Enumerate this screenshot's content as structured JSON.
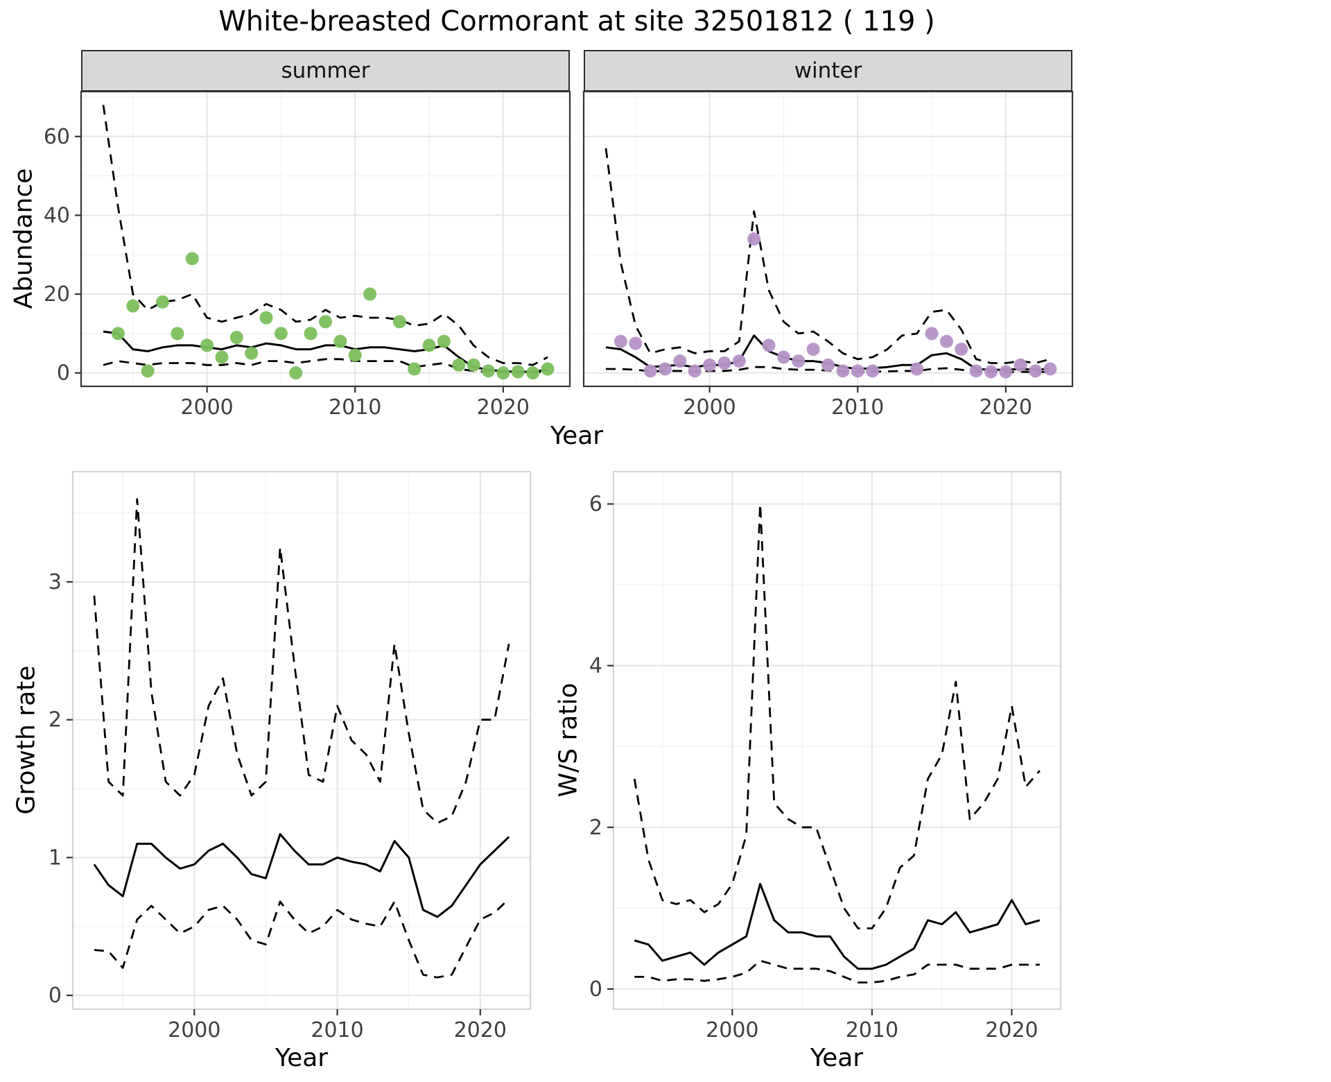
{
  "title": "White-breasted Cormorant at site 32501812 ( 119 )",
  "theme": {
    "line": "#000000",
    "point_summer": "#7bbf5c",
    "point_winter": "#b592c6",
    "grid_major": "#e6e6e6",
    "grid_minor": "#f2f2f2",
    "panel_border_top": "#333333",
    "panel_border_bottom": "#d4d4d4",
    "strip_bg": "#d8d8d8",
    "tick": "#333333",
    "tick_label": "#404040",
    "panel_bg": "#ffffff"
  },
  "chart_data": [
    {
      "id": "abundance_summer",
      "type": "line",
      "title": "summer",
      "xlabel": "Year",
      "ylabel": "Abundance",
      "legend": "none",
      "grid": true,
      "border": "panel_border_top",
      "xlim": [
        1991.5,
        2024.5
      ],
      "ylim": [
        -3.4,
        71.4
      ],
      "xticks": [
        2000,
        2010,
        2020
      ],
      "xticks_minor": [
        1995,
        2005,
        2015
      ],
      "yticks": [
        0,
        20,
        40,
        60
      ],
      "yticks_minor": [
        10,
        30,
        50,
        70
      ],
      "x": [
        1993,
        1994,
        1995,
        1996,
        1997,
        1998,
        1999,
        2000,
        2001,
        2002,
        2003,
        2004,
        2005,
        2006,
        2007,
        2008,
        2009,
        2010,
        2011,
        2012,
        2013,
        2014,
        2015,
        2016,
        2017,
        2018,
        2019,
        2020,
        2021,
        2022,
        2023
      ],
      "series": [
        {
          "name": "upper_ci",
          "style": "dashed",
          "values": [
            68,
            42,
            20,
            16,
            18,
            18.5,
            20,
            14,
            13,
            14,
            15,
            17.5,
            16,
            13,
            13.5,
            16,
            14,
            14.5,
            14,
            14,
            13.5,
            12,
            12.5,
            15,
            12,
            7,
            4,
            2.5,
            2.5,
            2,
            4
          ]
        },
        {
          "name": "lower_ci",
          "style": "dashed",
          "values": [
            2,
            3,
            2.5,
            2,
            2.5,
            2.5,
            2.5,
            2,
            2,
            2.5,
            2,
            3,
            3,
            2.5,
            3,
            3.5,
            3.5,
            3,
            3,
            3,
            3,
            1.5,
            2,
            2.5,
            1,
            0.5,
            0.2,
            0.1,
            0.1,
            0.1,
            0.3
          ]
        },
        {
          "name": "mean",
          "style": "solid",
          "values": [
            10.5,
            10,
            6,
            5.5,
            6.5,
            7,
            7,
            6.5,
            6,
            7,
            6.5,
            7.5,
            7,
            6,
            6,
            7,
            7,
            6,
            6.5,
            6.5,
            6,
            5.5,
            6,
            7,
            4,
            1.5,
            0.8,
            0.4,
            0.3,
            0.3,
            0.8
          ]
        },
        {
          "name": "observed",
          "style": "points",
          "color": "#7bbf5c",
          "values": [
            null,
            10,
            17,
            0.5,
            18,
            10,
            29,
            7,
            4,
            9,
            5,
            14,
            10,
            0,
            10,
            13,
            8,
            4.5,
            20,
            null,
            13,
            1,
            7,
            8,
            2,
            2,
            0.5,
            0,
            0.3,
            0,
            1
          ]
        }
      ]
    },
    {
      "id": "abundance_winter",
      "type": "line",
      "title": "winter",
      "xlabel": "Year",
      "ylabel": "Abundance",
      "legend": "none",
      "grid": true,
      "border": "panel_border_top",
      "xlim": [
        1991.5,
        2024.5
      ],
      "ylim": [
        -3.4,
        71.4
      ],
      "xticks": [
        2000,
        2010,
        2020
      ],
      "xticks_minor": [
        1995,
        2005,
        2015
      ],
      "yticks": [
        0,
        20,
        40,
        60
      ],
      "yticks_minor": [
        10,
        30,
        50,
        70
      ],
      "x": [
        1993,
        1994,
        1995,
        1996,
        1997,
        1998,
        1999,
        2000,
        2001,
        2002,
        2003,
        2004,
        2005,
        2006,
        2007,
        2008,
        2009,
        2010,
        2011,
        2012,
        2013,
        2014,
        2015,
        2016,
        2017,
        2018,
        2019,
        2020,
        2021,
        2022,
        2023
      ],
      "series": [
        {
          "name": "upper_ci",
          "style": "dashed",
          "values": [
            57,
            28,
            12,
            5,
            6,
            6.5,
            5,
            5.5,
            5.5,
            8,
            41,
            21,
            13,
            10,
            10.5,
            8,
            5,
            3.5,
            4,
            6,
            9.5,
            10,
            15.5,
            16,
            11,
            3.5,
            2.5,
            2.5,
            3,
            2.5,
            3.5
          ]
        },
        {
          "name": "lower_ci",
          "style": "dashed",
          "values": [
            1,
            1,
            0.8,
            0.4,
            0.5,
            0.5,
            0.4,
            0.5,
            0.5,
            0.8,
            1.5,
            1.5,
            1,
            0.8,
            0.8,
            0.6,
            0.4,
            0.3,
            0.3,
            0.4,
            0.5,
            0.5,
            1,
            1.2,
            0.8,
            0.3,
            0.2,
            0.2,
            0.3,
            0.2,
            0.3
          ]
        },
        {
          "name": "mean",
          "style": "solid",
          "values": [
            6.5,
            6,
            4,
            1.5,
            1.8,
            2,
            1.5,
            2,
            2,
            3,
            9.5,
            5.5,
            4,
            3,
            3,
            2.5,
            1.5,
            1,
            1.2,
            1.5,
            2,
            2,
            4.5,
            5,
            3.5,
            1,
            0.8,
            0.8,
            1,
            0.8,
            1
          ]
        },
        {
          "name": "observed",
          "style": "points",
          "color": "#b592c6",
          "values": [
            null,
            8,
            7.5,
            0.5,
            1,
            3,
            0.5,
            2,
            2.5,
            3,
            34,
            7,
            4,
            3,
            6,
            2,
            0.5,
            0.5,
            0.5,
            null,
            null,
            1,
            10,
            8,
            6,
            0.5,
            0.3,
            0.3,
            2,
            0.5,
            1
          ]
        }
      ]
    },
    {
      "id": "growth_rate",
      "type": "line",
      "title": "",
      "xlabel": "Year",
      "ylabel": "Growth rate",
      "legend": "none",
      "grid": true,
      "border": "panel_border_bottom",
      "xlim": [
        1991.5,
        2023.5
      ],
      "ylim": [
        -0.1,
        3.8
      ],
      "xticks": [
        2000,
        2010,
        2020
      ],
      "xticks_minor": [
        1995,
        2005,
        2015
      ],
      "yticks": [
        0,
        1,
        2,
        3
      ],
      "yticks_minor": [
        0.5,
        1.5,
        2.5,
        3.5
      ],
      "x": [
        1993,
        1994,
        1995,
        1996,
        1997,
        1998,
        1999,
        2000,
        2001,
        2002,
        2003,
        2004,
        2005,
        2006,
        2007,
        2008,
        2009,
        2010,
        2011,
        2012,
        2013,
        2014,
        2015,
        2016,
        2017,
        2018,
        2019,
        2020,
        2021,
        2022
      ],
      "series": [
        {
          "name": "upper_ci",
          "style": "dashed",
          "values": [
            2.9,
            1.55,
            1.45,
            3.6,
            2.2,
            1.55,
            1.45,
            1.6,
            2.1,
            2.3,
            1.75,
            1.45,
            1.55,
            3.25,
            2.4,
            1.6,
            1.55,
            2.1,
            1.85,
            1.75,
            1.55,
            2.55,
            1.9,
            1.35,
            1.25,
            1.3,
            1.55,
            2.0,
            2.0,
            2.55
          ]
        },
        {
          "name": "lower_ci",
          "style": "dashed",
          "values": [
            0.33,
            0.32,
            0.2,
            0.55,
            0.65,
            0.55,
            0.45,
            0.5,
            0.62,
            0.65,
            0.55,
            0.4,
            0.37,
            0.68,
            0.55,
            0.45,
            0.5,
            0.62,
            0.55,
            0.52,
            0.5,
            0.68,
            0.4,
            0.15,
            0.13,
            0.15,
            0.35,
            0.55,
            0.6,
            0.7
          ]
        },
        {
          "name": "mean",
          "style": "solid",
          "values": [
            0.95,
            0.8,
            0.72,
            1.1,
            1.1,
            1.0,
            0.92,
            0.95,
            1.05,
            1.1,
            1.0,
            0.88,
            0.85,
            1.17,
            1.05,
            0.95,
            0.95,
            1.0,
            0.97,
            0.95,
            0.9,
            1.12,
            1.0,
            0.62,
            0.57,
            0.65,
            0.8,
            0.95,
            1.05,
            1.15
          ]
        }
      ]
    },
    {
      "id": "ws_ratio",
      "type": "line",
      "title": "",
      "xlabel": "Year",
      "ylabel": "W/S ratio",
      "legend": "none",
      "grid": true,
      "border": "panel_border_bottom",
      "xlim": [
        1991.5,
        2023.5
      ],
      "ylim": [
        -0.25,
        6.4
      ],
      "xticks": [
        2000,
        2010,
        2020
      ],
      "xticks_minor": [
        1995,
        2005,
        2015
      ],
      "yticks": [
        0,
        2,
        4,
        6
      ],
      "yticks_minor": [
        1,
        3,
        5
      ],
      "x": [
        1993,
        1994,
        1995,
        1996,
        1997,
        1998,
        1999,
        2000,
        2001,
        2002,
        2003,
        2004,
        2005,
        2006,
        2007,
        2008,
        2009,
        2010,
        2011,
        2012,
        2013,
        2014,
        2015,
        2016,
        2017,
        2018,
        2019,
        2020,
        2021,
        2022
      ],
      "series": [
        {
          "name": "upper_ci",
          "style": "dashed",
          "values": [
            2.6,
            1.6,
            1.1,
            1.05,
            1.1,
            0.95,
            1.05,
            1.3,
            1.9,
            6.0,
            2.3,
            2.1,
            2.0,
            2.0,
            1.5,
            1.0,
            0.75,
            0.75,
            1.0,
            1.5,
            1.65,
            2.6,
            2.9,
            3.8,
            2.1,
            2.3,
            2.6,
            3.5,
            2.5,
            2.7
          ]
        },
        {
          "name": "lower_ci",
          "style": "dashed",
          "values": [
            0.15,
            0.15,
            0.1,
            0.12,
            0.12,
            0.1,
            0.12,
            0.15,
            0.2,
            0.35,
            0.3,
            0.25,
            0.25,
            0.25,
            0.22,
            0.15,
            0.08,
            0.08,
            0.1,
            0.15,
            0.18,
            0.3,
            0.3,
            0.3,
            0.25,
            0.25,
            0.25,
            0.3,
            0.3,
            0.3
          ]
        },
        {
          "name": "mean",
          "style": "solid",
          "values": [
            0.6,
            0.55,
            0.35,
            0.4,
            0.45,
            0.3,
            0.45,
            0.55,
            0.65,
            1.3,
            0.85,
            0.7,
            0.7,
            0.65,
            0.65,
            0.4,
            0.25,
            0.25,
            0.3,
            0.4,
            0.5,
            0.85,
            0.8,
            0.95,
            0.7,
            0.75,
            0.8,
            1.1,
            0.8,
            0.85
          ]
        }
      ]
    }
  ]
}
